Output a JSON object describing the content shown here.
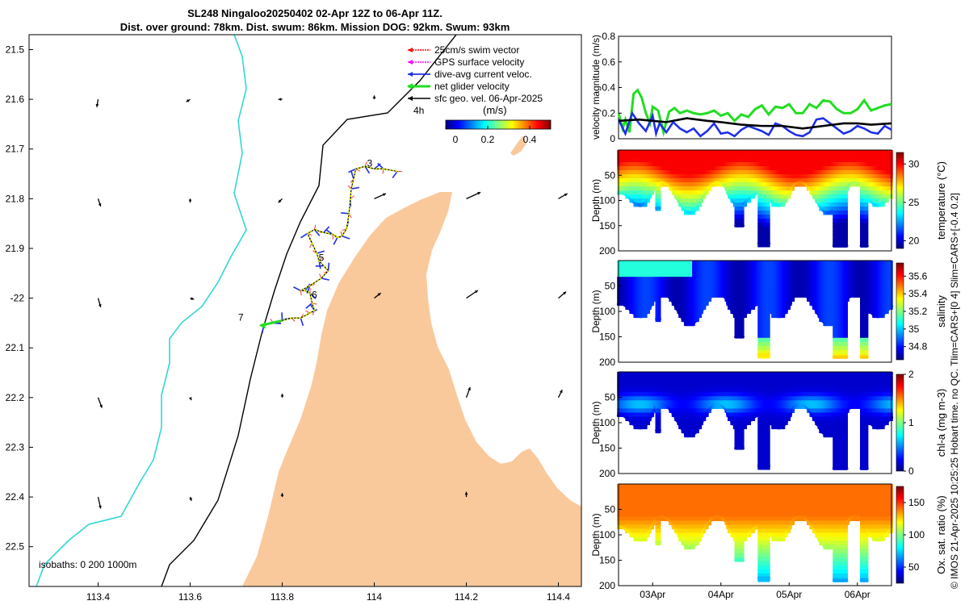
{
  "title_line1": "SL248 Ningaloo20250402 02-Apr 12Z to 06-Apr 11Z.",
  "title_line2": "Dist. over ground: 78km. Dist. swum: 86km. Mission DOG: 92km. Swum: 93km",
  "credit": "© IMOS 21-Apr-2025 10:25:25 Hobart time. no QC. Tlim=CARS+[0 4] Slim=CARS+[-0.4 0.2]",
  "colors": {
    "land": "#f9c99c",
    "coast": "#000000",
    "isobath200": "#000000",
    "isobath1000": "#33d6d6",
    "net": "#22dd22",
    "divecurrent": "#1f2fe6",
    "surface": "#ff00ff",
    "swim": "#ff0000",
    "sfcgeo": "#000000"
  },
  "chart_data": [
    {
      "type": "map",
      "xlabel": "",
      "ylabel": "",
      "xlim": [
        113.25,
        114.45
      ],
      "ylim": [
        -22.58,
        -21.47
      ],
      "xticks": [
        113.4,
        113.6,
        113.8,
        114,
        114.2,
        114.4
      ],
      "xticklabels": [
        "113.4",
        "113.6",
        "113.8",
        "114",
        "114.2",
        "114.4"
      ],
      "yticks": [
        -21.5,
        -21.6,
        -21.7,
        -21.8,
        -21.9,
        -22,
        -22.1,
        -22.2,
        -22.3,
        -22.4,
        -22.5
      ],
      "yticklabels": [
        "21.5",
        "21.6",
        "21.7",
        "21.8",
        "21.9",
        "-22",
        "22.1",
        "22.2",
        "22.3",
        "22.4",
        "22.5"
      ],
      "legend": {
        "position": "top-right",
        "entries": [
          "25cm/s swim vector",
          "GPS surface velocity",
          "dive-avg current veloc.",
          "net glider velocity",
          "sfc geo. vel. 06-Apr-2025"
        ],
        "time_marker": "4h"
      },
      "colorbar": {
        "label": "(m/s)",
        "range": [
          0,
          0.5
        ],
        "ticks": [
          0,
          0.2,
          0.4
        ],
        "ticklabels": [
          "0",
          "0.2",
          "0.4"
        ]
      },
      "isobaths_label": "isobaths: 0   200  1000m",
      "glider_track": {
        "lon": [
          114.05,
          114.02,
          114.0,
          113.98,
          113.96,
          113.955,
          113.95,
          113.948,
          113.945,
          113.94,
          113.93,
          113.92,
          113.91,
          113.89,
          113.87,
          113.855,
          113.865,
          113.875,
          113.88,
          113.89,
          113.9,
          113.885,
          113.86,
          113.84,
          113.85,
          113.86,
          113.865,
          113.87,
          113.86,
          113.84,
          113.82,
          113.8,
          113.78,
          113.76
        ],
        "lat": [
          -21.745,
          -21.74,
          -21.74,
          -21.735,
          -21.74,
          -21.76,
          -21.78,
          -21.8,
          -21.83,
          -21.86,
          -21.875,
          -21.878,
          -21.872,
          -21.868,
          -21.862,
          -21.87,
          -21.89,
          -21.91,
          -21.925,
          -21.935,
          -21.945,
          -21.96,
          -21.975,
          -21.985,
          -21.985,
          -21.99,
          -22.01,
          -22.025,
          -22.03,
          -22.04,
          -22.04,
          -22.045,
          -22.05,
          -22.055
        ]
      },
      "day_labels": [
        {
          "text": "3",
          "lon": 113.99,
          "lat": -21.735
        },
        {
          "text": "5",
          "lon": 113.885,
          "lat": -21.925
        },
        {
          "text": "6",
          "lon": 113.87,
          "lat": -22.0
        },
        {
          "text": "7",
          "lon": 113.71,
          "lat": -22.045
        }
      ],
      "geo_vectors": [
        {
          "lon": 113.4,
          "lat": -21.6,
          "u": -0.01,
          "v": -0.06
        },
        {
          "lon": 113.6,
          "lat": -21.6,
          "u": -0.03,
          "v": -0.02
        },
        {
          "lon": 113.8,
          "lat": -21.6,
          "u": -0.03,
          "v": 0.0
        },
        {
          "lon": 114.0,
          "lat": -21.6,
          "u": 0.0,
          "v": 0.03
        },
        {
          "lon": 113.4,
          "lat": -21.8,
          "u": 0.02,
          "v": -0.06
        },
        {
          "lon": 113.6,
          "lat": -21.8,
          "u": 0.0,
          "v": -0.03
        },
        {
          "lon": 113.8,
          "lat": -21.8,
          "u": -0.03,
          "v": -0.03
        },
        {
          "lon": 114.0,
          "lat": -21.8,
          "u": 0.09,
          "v": 0.04
        },
        {
          "lon": 114.2,
          "lat": -21.8,
          "u": 0.11,
          "v": 0.05
        },
        {
          "lon": 114.4,
          "lat": -21.8,
          "u": 0.07,
          "v": 0.04
        },
        {
          "lon": 113.4,
          "lat": -22.0,
          "u": 0.02,
          "v": -0.07
        },
        {
          "lon": 113.6,
          "lat": -22.0,
          "u": 0.03,
          "v": -0.01
        },
        {
          "lon": 114.0,
          "lat": -22.0,
          "u": 0.05,
          "v": 0.04
        },
        {
          "lon": 114.2,
          "lat": -22.0,
          "u": 0.09,
          "v": 0.06
        },
        {
          "lon": 114.4,
          "lat": -22.0,
          "u": 0.06,
          "v": 0.05
        },
        {
          "lon": 113.4,
          "lat": -22.2,
          "u": 0.03,
          "v": -0.08
        },
        {
          "lon": 113.6,
          "lat": -22.2,
          "u": 0.01,
          "v": -0.02
        },
        {
          "lon": 113.8,
          "lat": -22.2,
          "u": 0.0,
          "v": 0.03
        },
        {
          "lon": 114.2,
          "lat": -22.2,
          "u": 0.03,
          "v": 0.08
        },
        {
          "lon": 114.4,
          "lat": -22.2,
          "u": 0.03,
          "v": 0.06
        },
        {
          "lon": 113.4,
          "lat": -22.4,
          "u": 0.02,
          "v": -0.09
        },
        {
          "lon": 113.6,
          "lat": -22.4,
          "u": 0.01,
          "v": -0.03
        },
        {
          "lon": 113.8,
          "lat": -22.4,
          "u": 0.0,
          "v": 0.03
        },
        {
          "lon": 114.2,
          "lat": -22.4,
          "u": 0.0,
          "v": 0.04
        }
      ]
    },
    {
      "type": "line",
      "ylabel": "velocity magnitude (m/s)",
      "ylim": [
        0,
        0.8
      ],
      "yticks": [
        0,
        0.2,
        0.4,
        0.6,
        0.8
      ],
      "yticklabels": [
        "0",
        "0.2",
        "0.4",
        "0.6",
        "0.8"
      ],
      "xlim": [
        2.5,
        6.5
      ],
      "series": [
        {
          "name": "net glider velocity",
          "color": "#22dd22",
          "x": [
            2.5,
            2.56,
            2.6,
            2.66,
            2.72,
            2.78,
            2.84,
            2.9,
            2.96,
            3.0,
            3.08,
            3.16,
            3.24,
            3.32,
            3.4,
            3.5,
            3.6,
            3.7,
            3.8,
            3.9,
            4.0,
            4.1,
            4.2,
            4.3,
            4.4,
            4.5,
            4.6,
            4.7,
            4.8,
            4.9,
            5.0,
            5.1,
            5.2,
            5.3,
            5.4,
            5.5,
            5.6,
            5.7,
            5.8,
            5.9,
            6.0,
            6.1,
            6.2,
            6.3,
            6.4,
            6.5
          ],
          "y": [
            0.2,
            0.08,
            0.15,
            0.05,
            0.35,
            0.38,
            0.32,
            0.2,
            0.12,
            0.25,
            0.22,
            0.05,
            0.21,
            0.24,
            0.2,
            0.22,
            0.2,
            0.19,
            0.2,
            0.22,
            0.18,
            0.2,
            0.14,
            0.19,
            0.17,
            0.23,
            0.26,
            0.19,
            0.25,
            0.24,
            0.27,
            0.2,
            0.2,
            0.27,
            0.24,
            0.3,
            0.29,
            0.23,
            0.2,
            0.2,
            0.23,
            0.3,
            0.22,
            0.24,
            0.26,
            0.27
          ]
        },
        {
          "name": "dive-avg current veloc.",
          "color": "#1f2fe6",
          "x": [
            2.5,
            2.6,
            2.7,
            2.8,
            2.9,
            3.0,
            3.05,
            3.1,
            3.2,
            3.3,
            3.4,
            3.5,
            3.6,
            3.7,
            3.8,
            3.9,
            4.0,
            4.1,
            4.2,
            4.3,
            4.4,
            4.5,
            4.6,
            4.7,
            4.8,
            4.9,
            5.0,
            5.1,
            5.2,
            5.3,
            5.4,
            5.5,
            5.6,
            5.7,
            5.8,
            5.9,
            6.0,
            6.1,
            6.2,
            6.3,
            6.4,
            6.5
          ],
          "y": [
            0.15,
            0.04,
            0.2,
            0.12,
            0.06,
            0.18,
            0.04,
            0.12,
            0.05,
            0.13,
            0.08,
            0.05,
            0.08,
            0.02,
            0.06,
            0.12,
            0.04,
            0.05,
            0.02,
            0.07,
            0.1,
            0.08,
            0.06,
            0.03,
            0.12,
            0.1,
            0.06,
            0.03,
            0.02,
            0.05,
            0.15,
            0.16,
            0.12,
            0.08,
            0.04,
            0.06,
            0.1,
            0.08,
            0.05,
            0.04,
            0.1,
            0.07
          ]
        },
        {
          "name": "sfc geo. vel.",
          "color": "#000000",
          "x": [
            2.5,
            2.8,
            3.0,
            3.2,
            3.5,
            3.8,
            4.0,
            4.3,
            4.6,
            4.9,
            5.2,
            5.5,
            5.8,
            6.0,
            6.2,
            6.5
          ],
          "y": [
            0.14,
            0.15,
            0.14,
            0.13,
            0.16,
            0.14,
            0.13,
            0.11,
            0.1,
            0.1,
            0.08,
            0.1,
            0.12,
            0.12,
            0.11,
            0.12
          ]
        }
      ]
    },
    {
      "type": "heatmap",
      "ylabel": "Depth (m)",
      "colorbar_label": "temperature (°C)",
      "ylim": [
        0,
        200
      ],
      "yticks": [
        50,
        100,
        150,
        200
      ],
      "yticklabels": [
        "50",
        "100",
        "150",
        "200"
      ],
      "clim": [
        19,
        31.5
      ],
      "cticks": [
        20,
        25,
        30
      ],
      "cticklabels": [
        "20",
        "25",
        "30"
      ],
      "colormap": "jet"
    },
    {
      "type": "heatmap",
      "ylabel": "Depth (m)",
      "colorbar_label": "salinity",
      "ylim": [
        0,
        200
      ],
      "yticks": [
        50,
        100,
        150,
        200
      ],
      "yticklabels": [
        "50",
        "100",
        "150",
        "200"
      ],
      "clim": [
        34.65,
        35.75
      ],
      "cticks": [
        34.8,
        35,
        35.2,
        35.4,
        35.6
      ],
      "cticklabels": [
        "34.8",
        "35",
        "35.2",
        "35.4",
        "35.6"
      ],
      "colormap": "jet"
    },
    {
      "type": "heatmap",
      "ylabel": "Depth (m)",
      "colorbar_label": "chl-a (mg m-3)",
      "ylim": [
        0,
        200
      ],
      "yticks": [
        50,
        100,
        150,
        200
      ],
      "yticklabels": [
        "50",
        "100",
        "150",
        "200"
      ],
      "clim": [
        0,
        2
      ],
      "cticks": [
        0,
        1,
        2
      ],
      "cticklabels": [
        "0",
        "1",
        "2"
      ],
      "colormap": "jet"
    },
    {
      "type": "heatmap",
      "ylabel": "Depth (m)",
      "colorbar_label": "Ox. sat. ratio (%)",
      "ylim": [
        0,
        200
      ],
      "yticks": [
        50,
        100,
        150,
        200
      ],
      "yticklabels": [
        "50",
        "100",
        "150",
        "200"
      ],
      "clim": [
        25,
        175
      ],
      "cticks": [
        50,
        100,
        150
      ],
      "cticklabels": [
        "50",
        "100",
        "150"
      ],
      "colormap": "jet",
      "xticks": [
        3,
        4,
        5,
        6
      ],
      "xticklabels": [
        "03Apr",
        "04Apr",
        "05Apr",
        "06Apr"
      ],
      "xlim": [
        2.5,
        6.5
      ]
    }
  ]
}
